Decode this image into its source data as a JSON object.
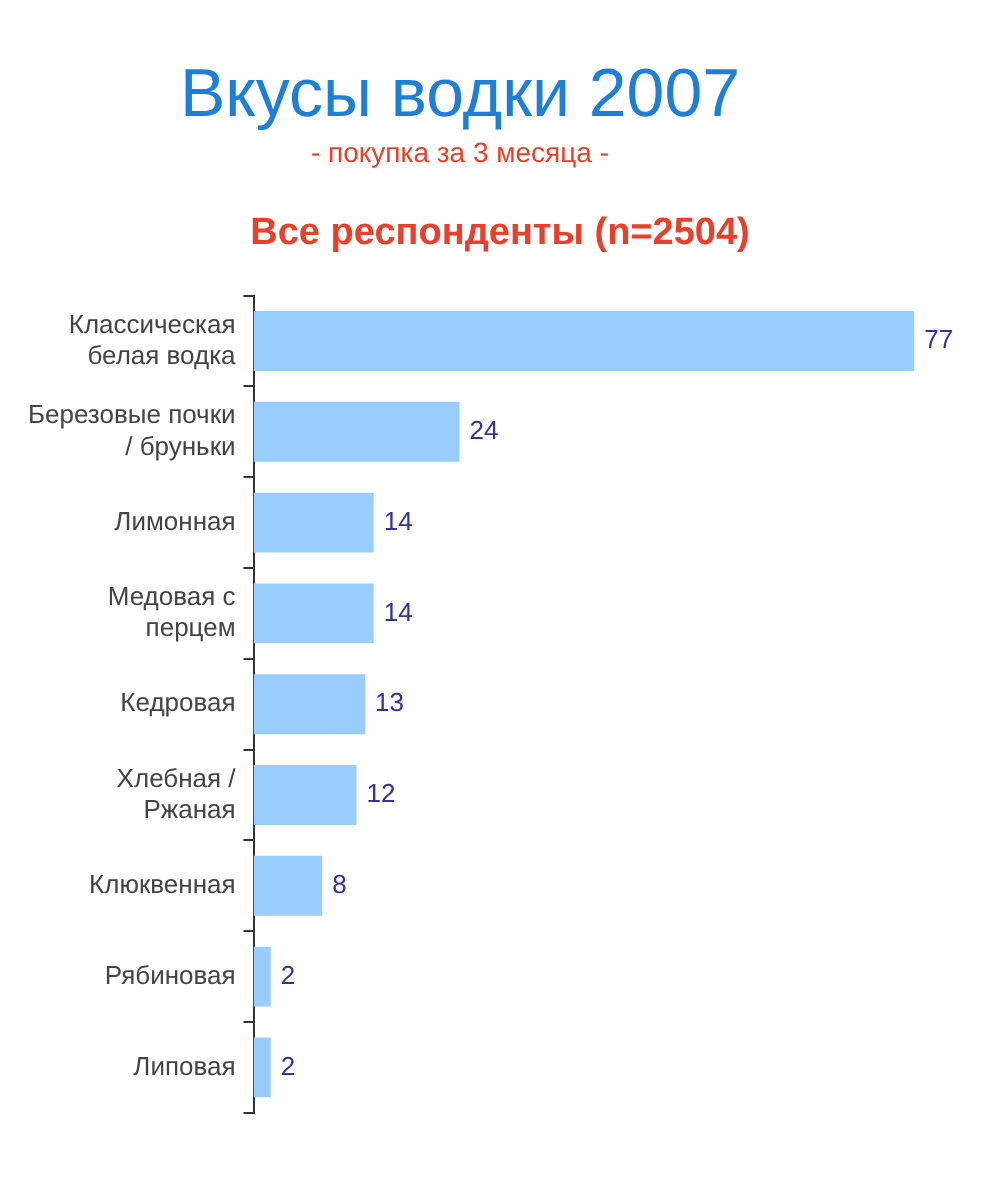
{
  "chart_data": {
    "type": "bar",
    "orientation": "horizontal",
    "title": "Все респонденты (n=2504)",
    "annotations": [
      "Вкусы водки 2007",
      "- покупка за 3 месяца -"
    ],
    "categories": [
      "Классическая белая водка",
      "Березовые почки / бруньки",
      "Лимонная",
      "Медовая с перцем",
      "Кедровая",
      "Хлебная / Ржаная",
      "Клюквенная",
      "Рябиновая",
      "Липовая"
    ],
    "values": [
      77,
      24,
      14,
      14,
      13,
      12,
      8,
      2,
      2
    ],
    "color": "#99ccff",
    "data_labels": true,
    "legend": false
  }
}
